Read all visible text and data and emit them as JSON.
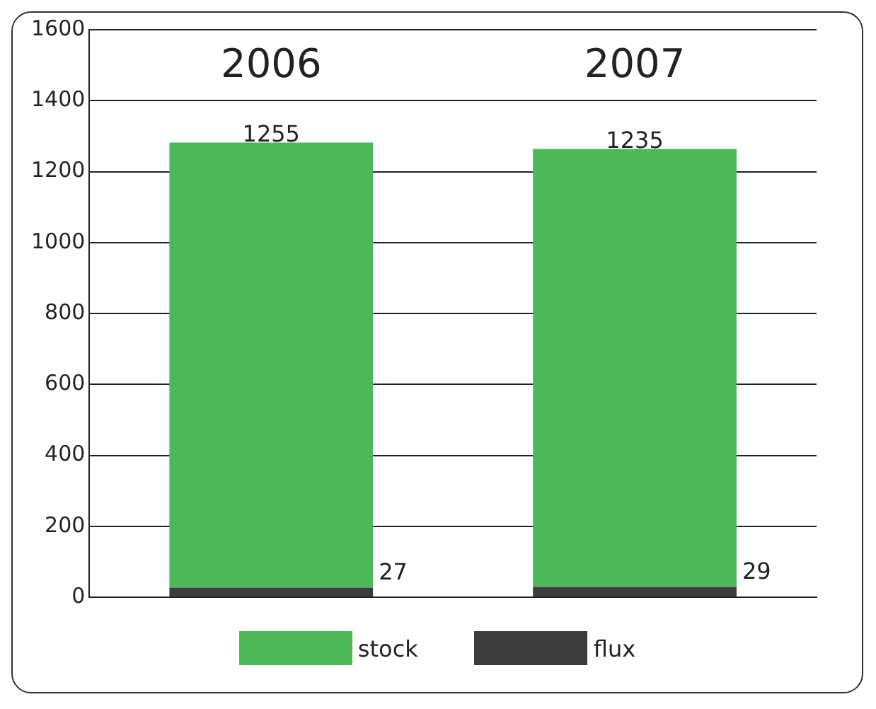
{
  "chart_data": {
    "type": "bar",
    "categories": [
      "2006",
      "2007"
    ],
    "stacked": true,
    "series": [
      {
        "name": "flux",
        "color": "#3c3c3c",
        "values": [
          27,
          29
        ]
      },
      {
        "name": "stock",
        "color": "#4cb85a",
        "values": [
          1255,
          1235
        ]
      }
    ],
    "ylim": [
      0,
      1600
    ],
    "yticks": [
      0,
      200,
      400,
      600,
      800,
      1000,
      1200,
      1400,
      1600
    ],
    "grid": "y",
    "legend": "bottom",
    "data_labels": true
  }
}
